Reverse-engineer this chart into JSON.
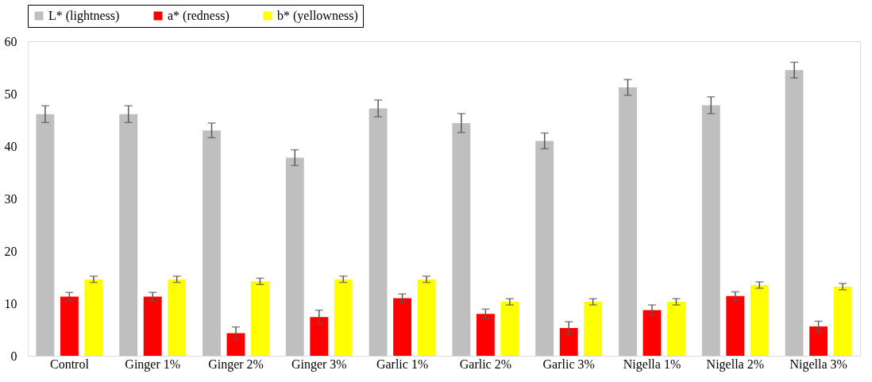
{
  "chart_data": {
    "type": "bar",
    "categories": [
      "Control",
      "Ginger 1%",
      "Ginger 2%",
      "Ginger 3%",
      "Garlic 1%",
      "Garlic 2%",
      "Garlic 3%",
      "Nigella 1%",
      "Nigella 2%",
      "Nigella 3%"
    ],
    "series": [
      {
        "name": "L* (lightness)",
        "color": "#bfbfbf",
        "values": [
          46.1,
          46.1,
          43.0,
          37.8,
          47.2,
          44.4,
          41.0,
          51.2,
          47.8,
          54.5
        ],
        "errors": [
          1.6,
          1.6,
          1.4,
          1.5,
          1.6,
          1.8,
          1.5,
          1.5,
          1.6,
          1.5
        ]
      },
      {
        "name": "a* (redness)",
        "color": "#ff0000",
        "values": [
          11.3,
          11.3,
          4.3,
          7.4,
          11.0,
          8.0,
          5.3,
          8.7,
          11.4,
          5.6
        ],
        "errors": [
          0.8,
          0.8,
          1.2,
          1.3,
          0.8,
          0.9,
          1.2,
          1.0,
          0.8,
          1.0
        ]
      },
      {
        "name": "b* (yellowness)",
        "color": "#ffff00",
        "values": [
          14.6,
          14.6,
          14.2,
          14.6,
          14.6,
          10.3,
          10.3,
          10.3,
          13.5,
          13.2
        ],
        "errors": [
          0.6,
          0.6,
          0.6,
          0.6,
          0.6,
          0.6,
          0.6,
          0.6,
          0.6,
          0.6
        ]
      }
    ],
    "ylim": [
      0,
      60
    ],
    "yticks": [
      0,
      10,
      20,
      30,
      40,
      50,
      60
    ],
    "grid": false,
    "legend": "top"
  }
}
